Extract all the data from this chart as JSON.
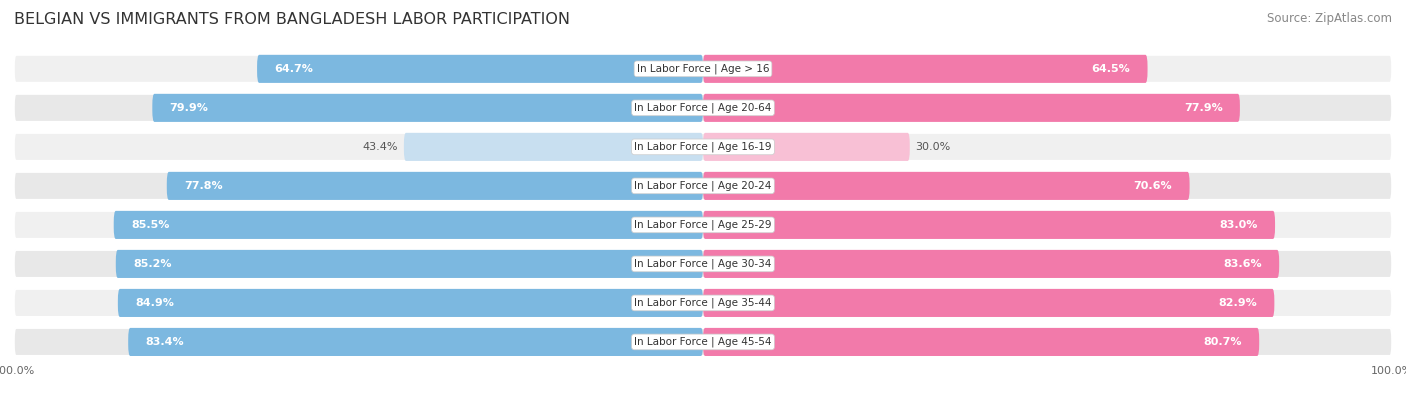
{
  "title": "BELGIAN VS IMMIGRANTS FROM BANGLADESH LABOR PARTICIPATION",
  "source": "Source: ZipAtlas.com",
  "categories": [
    "In Labor Force | Age > 16",
    "In Labor Force | Age 20-64",
    "In Labor Force | Age 16-19",
    "In Labor Force | Age 20-24",
    "In Labor Force | Age 25-29",
    "In Labor Force | Age 30-34",
    "In Labor Force | Age 35-44",
    "In Labor Force | Age 45-54"
  ],
  "belgian_values": [
    64.7,
    79.9,
    43.4,
    77.8,
    85.5,
    85.2,
    84.9,
    83.4
  ],
  "immigrant_values": [
    64.5,
    77.9,
    30.0,
    70.6,
    83.0,
    83.6,
    82.9,
    80.7
  ],
  "belgian_color_full": "#7cb8e0",
  "belgian_color_light": "#c8dff0",
  "immigrant_color_full": "#f27aaa",
  "immigrant_color_light": "#f8c0d5",
  "max_value": 100.0,
  "background_color": "#ffffff",
  "row_bg_odd": "#f0f0f0",
  "row_bg_even": "#e8e8e8",
  "title_fontsize": 11.5,
  "source_fontsize": 8.5,
  "bar_label_fontsize": 8,
  "category_fontsize": 7.5,
  "legend_fontsize": 9,
  "axis_label_fontsize": 8
}
